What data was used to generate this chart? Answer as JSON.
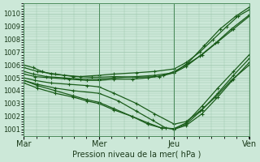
{
  "xlabel": "Pression niveau de la mer( hPa )",
  "background_color": "#cce8d8",
  "plot_bg_color": "#cce8d8",
  "grid_color": "#99c4aa",
  "line_color": "#1a5c1a",
  "ylim": [
    1000.5,
    1010.8
  ],
  "yticks": [
    1001,
    1002,
    1003,
    1004,
    1005,
    1006,
    1007,
    1008,
    1009,
    1010
  ],
  "xtick_labels": [
    "Mar",
    "Mer",
    "Jeu",
    "Ven"
  ],
  "xtick_positions": [
    0,
    0.333,
    0.667,
    1.0
  ],
  "series": [
    {
      "x": [
        0.0,
        0.04,
        0.08,
        0.12,
        0.18,
        0.25,
        0.333,
        0.4,
        0.5,
        0.58,
        0.667,
        0.72,
        0.78,
        0.84,
        0.9,
        0.95,
        1.0
      ],
      "y": [
        1006.0,
        1005.8,
        1005.5,
        1005.3,
        1005.2,
        1005.1,
        1005.2,
        1005.3,
        1005.4,
        1005.5,
        1005.7,
        1006.2,
        1007.0,
        1008.0,
        1009.0,
        1009.8,
        1010.3
      ]
    },
    {
      "x": [
        0.0,
        0.04,
        0.1,
        0.18,
        0.25,
        0.333,
        0.4,
        0.5,
        0.58,
        0.667,
        0.72,
        0.78,
        0.85,
        0.92,
        1.0
      ],
      "y": [
        1005.5,
        1005.3,
        1005.1,
        1005.0,
        1004.9,
        1004.9,
        1005.0,
        1005.1,
        1005.2,
        1005.4,
        1005.9,
        1006.7,
        1007.7,
        1008.8,
        1009.9
      ]
    },
    {
      "x": [
        0.0,
        0.05,
        0.12,
        0.2,
        0.28,
        0.333,
        0.4,
        0.48,
        0.55,
        0.62,
        0.667,
        0.72,
        0.79,
        0.86,
        0.93,
        1.0
      ],
      "y": [
        1005.3,
        1005.1,
        1005.0,
        1004.9,
        1004.8,
        1004.8,
        1004.9,
        1004.9,
        1005.0,
        1005.2,
        1005.5,
        1006.0,
        1006.8,
        1007.8,
        1008.8,
        1009.8
      ]
    },
    {
      "x": [
        0.0,
        0.06,
        0.14,
        0.22,
        0.3,
        0.333,
        0.4,
        0.5,
        0.6,
        0.667,
        0.73,
        0.8,
        0.87,
        0.94,
        1.0
      ],
      "y": [
        1005.8,
        1005.5,
        1005.3,
        1005.1,
        1005.05,
        1005.05,
        1005.1,
        1005.05,
        1005.1,
        1005.4,
        1006.2,
        1007.5,
        1008.8,
        1009.8,
        1010.5
      ]
    },
    {
      "x": [
        0.0,
        0.05,
        0.12,
        0.2,
        0.28,
        0.333,
        0.4,
        0.5,
        0.58,
        0.667,
        0.72,
        0.78,
        0.85,
        0.92,
        1.0
      ],
      "y": [
        1005.0,
        1004.8,
        1004.6,
        1004.5,
        1004.4,
        1004.3,
        1003.8,
        1003.0,
        1002.2,
        1001.4,
        1001.6,
        1002.4,
        1003.5,
        1004.8,
        1006.0
      ]
    },
    {
      "x": [
        0.0,
        0.06,
        0.14,
        0.22,
        0.333,
        0.42,
        0.5,
        0.57,
        0.63,
        0.667,
        0.72,
        0.79,
        0.86,
        0.93,
        1.0
      ],
      "y": [
        1004.8,
        1004.5,
        1004.2,
        1004.0,
        1003.8,
        1003.2,
        1002.4,
        1001.7,
        1001.1,
        1001.0,
        1001.3,
        1002.2,
        1003.5,
        1004.9,
        1006.2
      ]
    },
    {
      "x": [
        0.0,
        0.06,
        0.14,
        0.22,
        0.28,
        0.333,
        0.4,
        0.48,
        0.55,
        0.61,
        0.667,
        0.72,
        0.79,
        0.86,
        0.93,
        1.0
      ],
      "y": [
        1004.6,
        1004.2,
        1003.8,
        1003.5,
        1003.2,
        1003.0,
        1002.5,
        1002.0,
        1001.5,
        1001.1,
        1001.05,
        1001.4,
        1002.5,
        1003.8,
        1005.2,
        1006.5
      ]
    },
    {
      "x": [
        0.0,
        0.06,
        0.14,
        0.22,
        0.28,
        0.333,
        0.4,
        0.48,
        0.55,
        0.61,
        0.667,
        0.72,
        0.79,
        0.86,
        0.93,
        1.0
      ],
      "y": [
        1004.8,
        1004.4,
        1004.0,
        1003.6,
        1003.3,
        1003.1,
        1002.6,
        1002.0,
        1001.4,
        1001.1,
        1001.05,
        1001.5,
        1002.8,
        1004.2,
        1005.5,
        1006.8
      ]
    }
  ]
}
